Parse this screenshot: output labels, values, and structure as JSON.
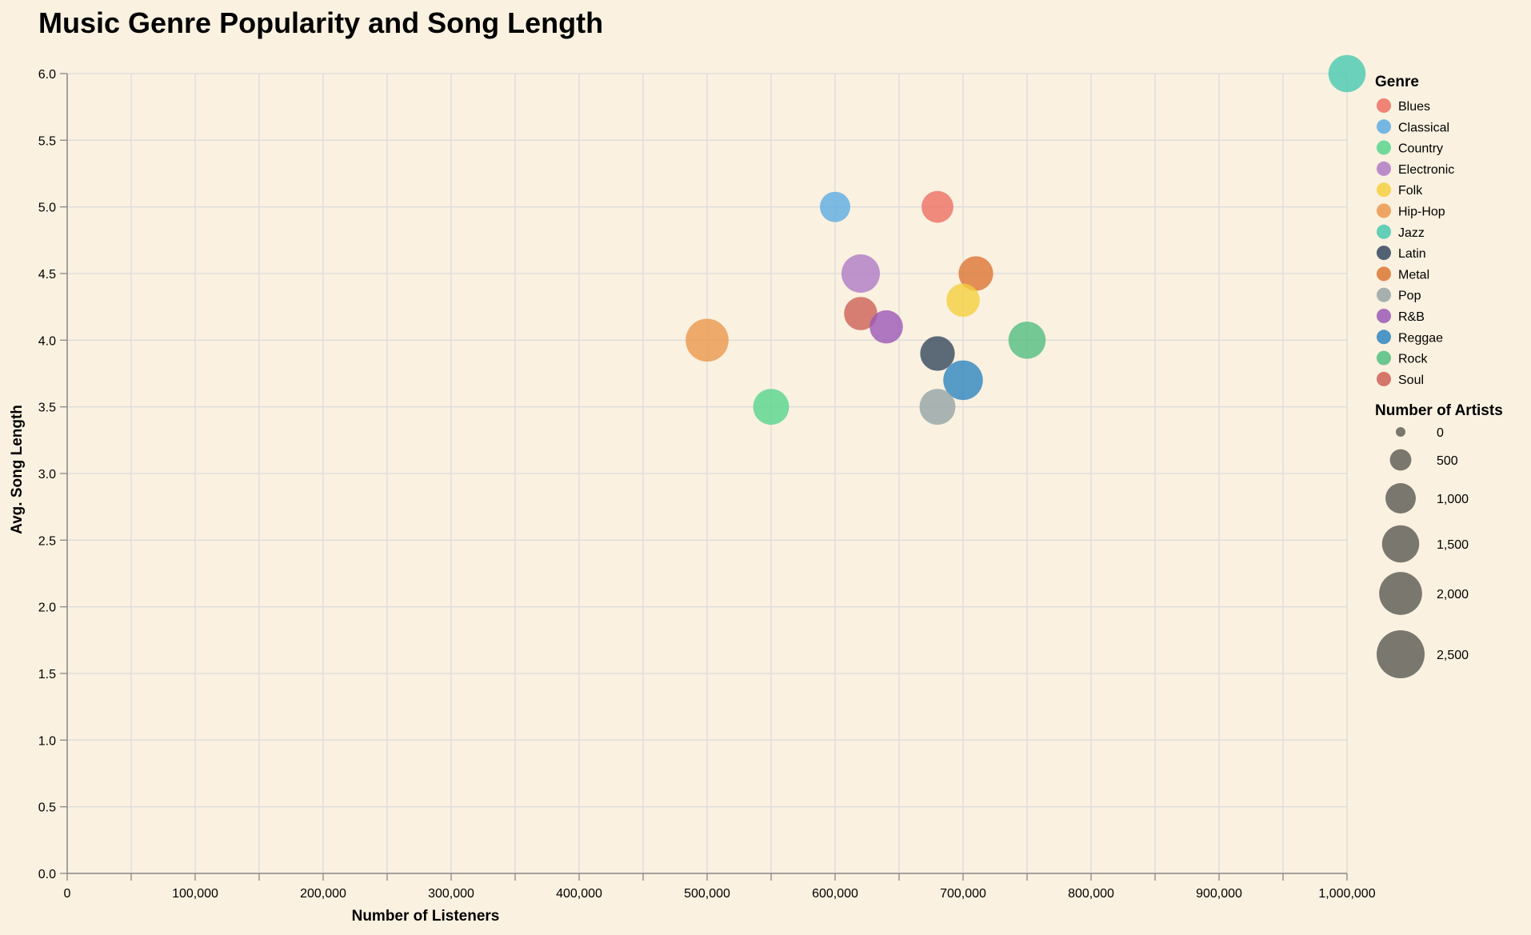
{
  "chart_data": {
    "type": "scatter",
    "title": "Music Genre Popularity and Song Length",
    "xlabel": "Number of Listeners",
    "ylabel": "Avg. Song Length",
    "xlim": [
      0,
      1000000
    ],
    "ylim": [
      0,
      6.0
    ],
    "x_ticks": [
      0,
      100000,
      200000,
      300000,
      400000,
      500000,
      600000,
      700000,
      800000,
      900000,
      1000000
    ],
    "x_tick_labels": [
      "0",
      "100,000",
      "200,000",
      "300,000",
      "400,000",
      "500,000",
      "600,000",
      "700,000",
      "800,000",
      "900,000",
      "1,000,000"
    ],
    "y_ticks": [
      0,
      0.5,
      1.0,
      1.5,
      2.0,
      2.5,
      3.0,
      3.5,
      4.0,
      4.5,
      5.0,
      5.5,
      6.0
    ],
    "y_tick_labels": [
      "0.0",
      "0.5",
      "1.0",
      "1.5",
      "2.0",
      "2.5",
      "3.0",
      "3.5",
      "4.0",
      "4.5",
      "5.0",
      "5.5",
      "6.0"
    ],
    "grid": true,
    "size_scale_max": 2500,
    "legend": {
      "placement": "right",
      "color_title": "Genre",
      "size_title": "Number of Artists",
      "size_values": [
        0,
        500,
        1000,
        1500,
        2000,
        2500
      ],
      "size_labels": [
        "0",
        "500",
        "1,000",
        "1,500",
        "2,000",
        "2,500"
      ],
      "size_color": "#7a776e"
    },
    "genres": [
      {
        "name": "Blues",
        "color": "#ec7063"
      },
      {
        "name": "Classical",
        "color": "#5dade2"
      },
      {
        "name": "Country",
        "color": "#58d68d"
      },
      {
        "name": "Electronic",
        "color": "#af7ac5"
      },
      {
        "name": "Folk",
        "color": "#f4d03f"
      },
      {
        "name": "Hip-Hop",
        "color": "#eb984e"
      },
      {
        "name": "Jazz",
        "color": "#48c9b0"
      },
      {
        "name": "Latin",
        "color": "#34495e"
      },
      {
        "name": "Metal",
        "color": "#dc7633"
      },
      {
        "name": "Pop",
        "color": "#95a5a6"
      },
      {
        "name": "R&B",
        "color": "#9b59b6"
      },
      {
        "name": "Reggae",
        "color": "#2e86c1"
      },
      {
        "name": "Rock",
        "color": "#52be80"
      },
      {
        "name": "Soul",
        "color": "#cd6155"
      }
    ],
    "points": [
      {
        "genre": "Jazz",
        "listeners": 1000000,
        "song_length": 6.0,
        "artists": 1500
      },
      {
        "genre": "Classical",
        "listeners": 600000,
        "song_length": 5.0,
        "artists": 1000
      },
      {
        "genre": "Blues",
        "listeners": 680000,
        "song_length": 5.0,
        "artists": 1100
      },
      {
        "genre": "Electronic",
        "listeners": 620000,
        "song_length": 4.5,
        "artists": 1600
      },
      {
        "genre": "Metal",
        "listeners": 710000,
        "song_length": 4.5,
        "artists": 1300
      },
      {
        "genre": "Folk",
        "listeners": 700000,
        "song_length": 4.3,
        "artists": 1200
      },
      {
        "genre": "Soul",
        "listeners": 620000,
        "song_length": 4.2,
        "artists": 1200
      },
      {
        "genre": "R&B",
        "listeners": 640000,
        "song_length": 4.1,
        "artists": 1200
      },
      {
        "genre": "Hip-Hop",
        "listeners": 500000,
        "song_length": 4.0,
        "artists": 2000
      },
      {
        "genre": "Rock",
        "listeners": 750000,
        "song_length": 4.0,
        "artists": 1500
      },
      {
        "genre": "Latin",
        "listeners": 680000,
        "song_length": 3.9,
        "artists": 1300
      },
      {
        "genre": "Reggae",
        "listeners": 700000,
        "song_length": 3.7,
        "artists": 1700
      },
      {
        "genre": "Country",
        "listeners": 550000,
        "song_length": 3.5,
        "artists": 1400
      },
      {
        "genre": "Pop",
        "listeners": 680000,
        "song_length": 3.5,
        "artists": 1400
      }
    ]
  }
}
